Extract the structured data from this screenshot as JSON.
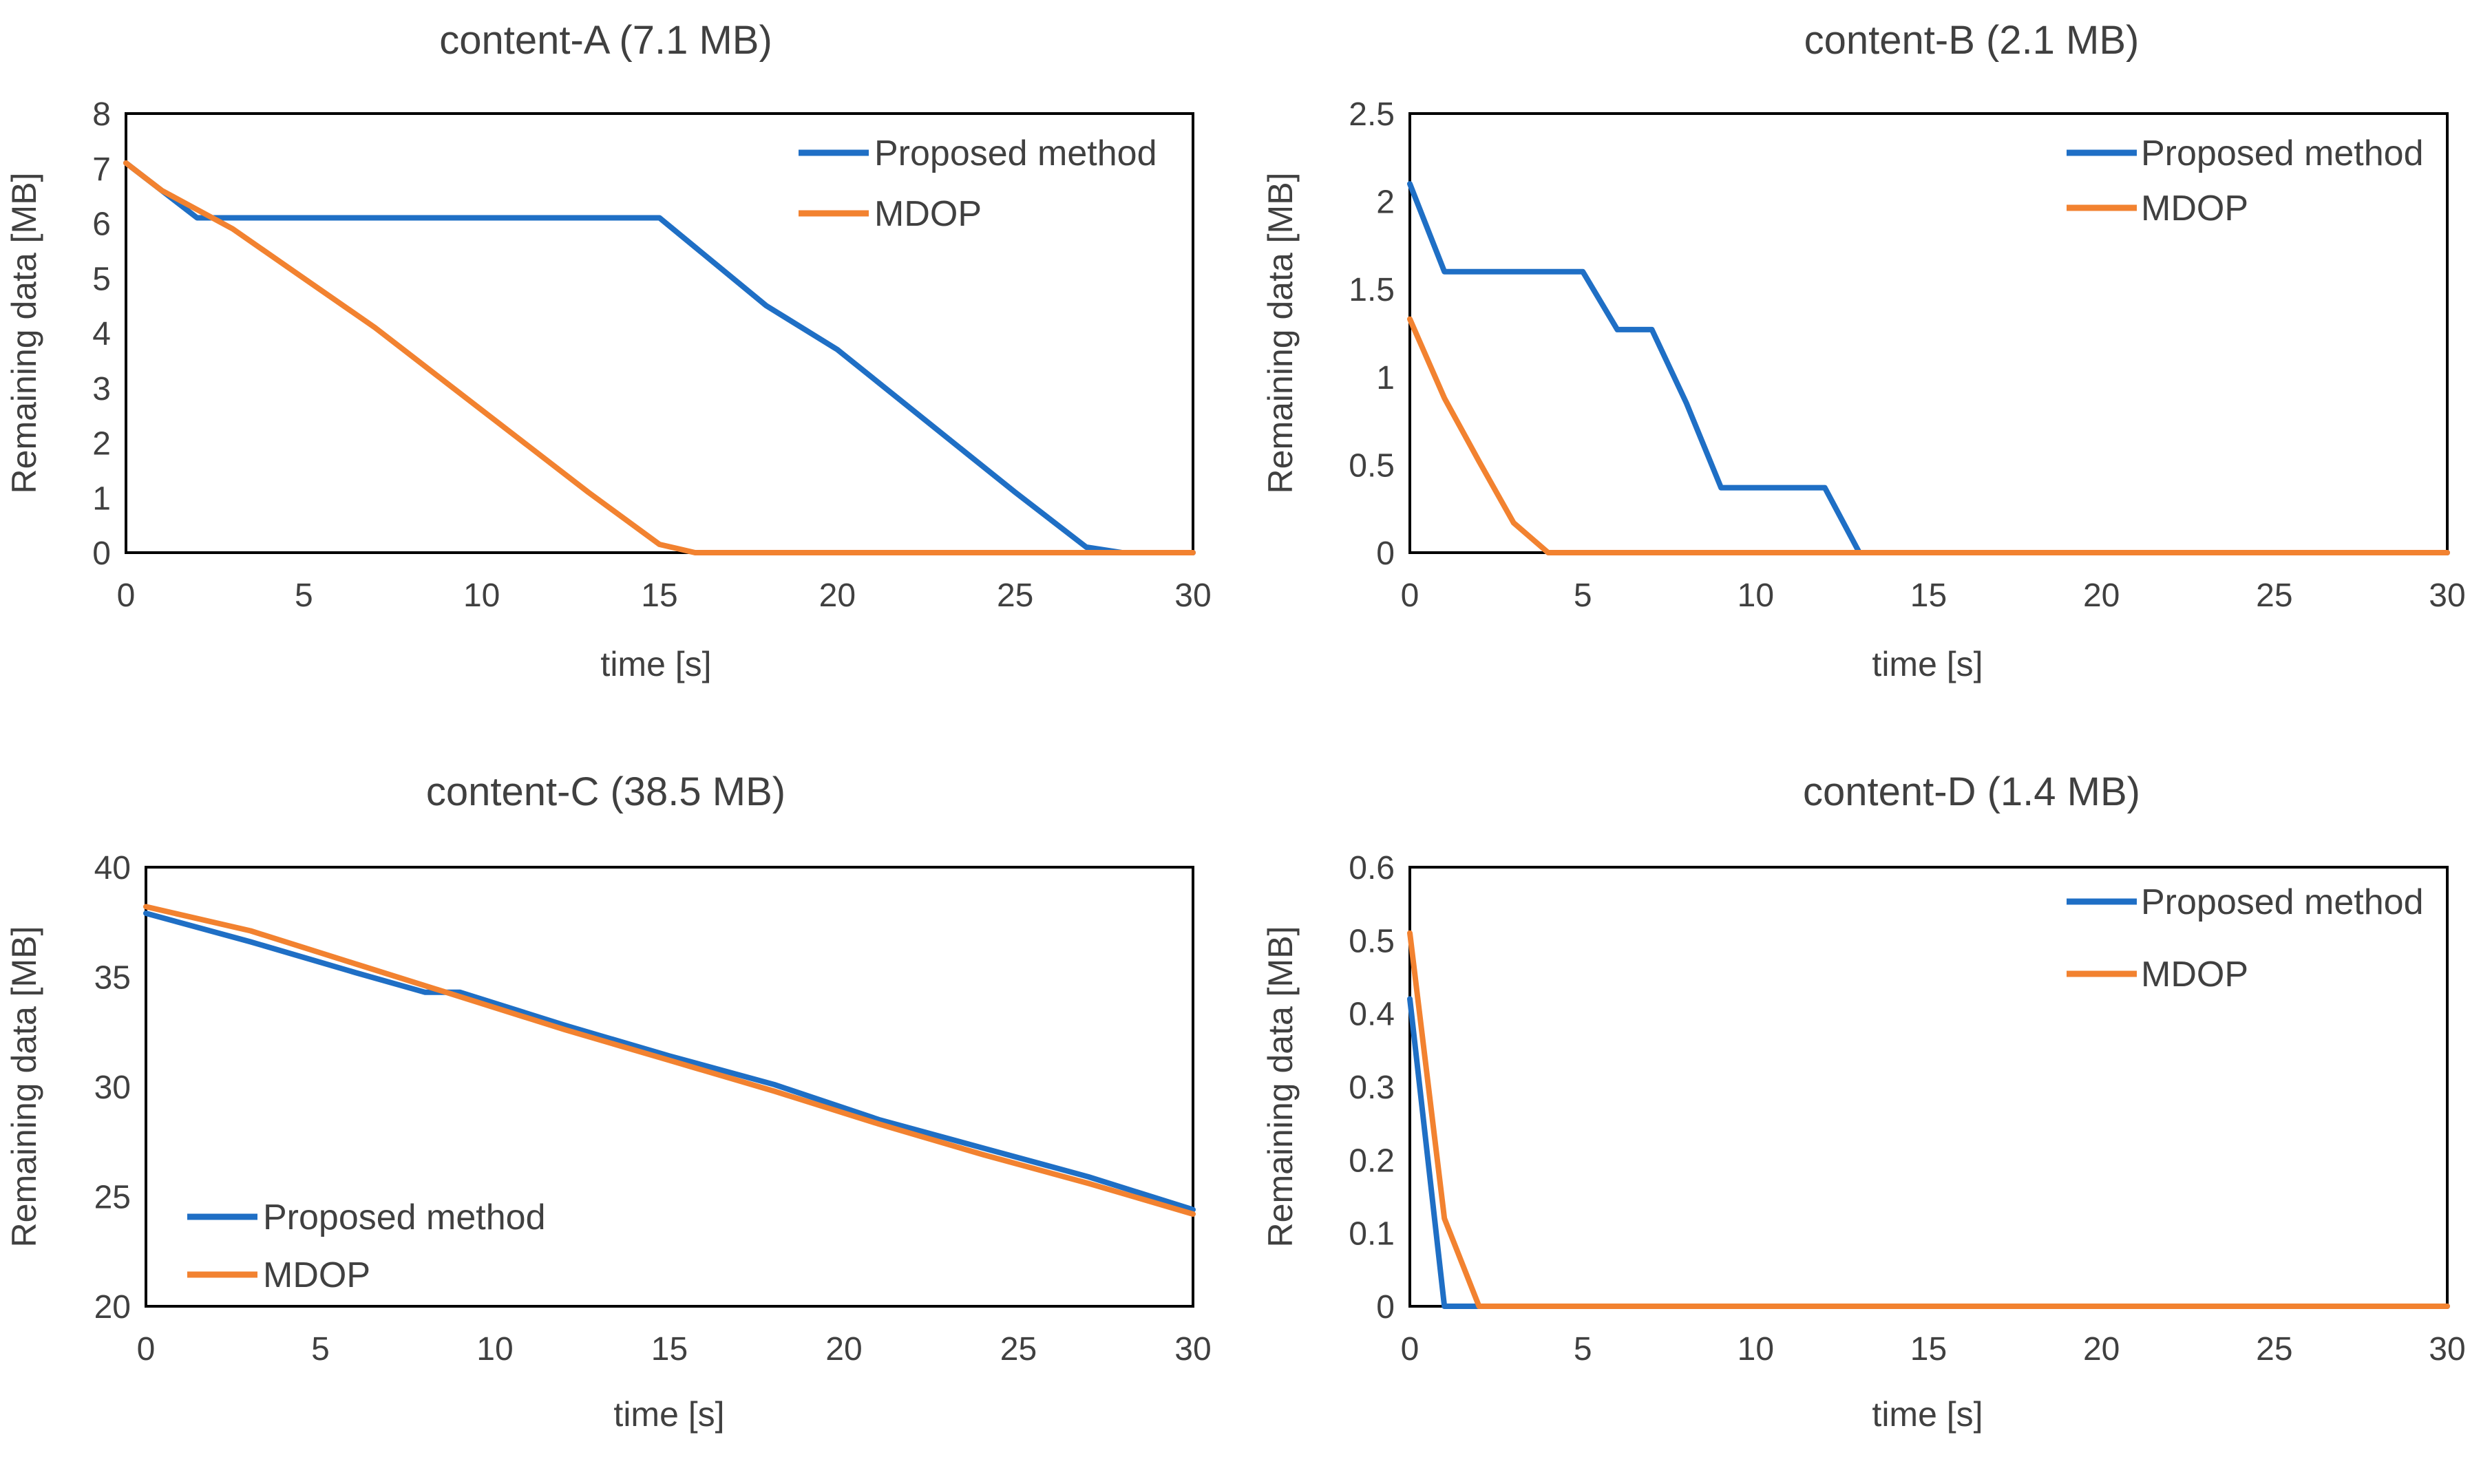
{
  "colors": {
    "proposed": "#1f6fc5",
    "mdop": "#f28230",
    "frame": "#000000",
    "text": "#404040"
  },
  "chart_data": [
    {
      "type": "line",
      "title": "content-A (7.1 MB)",
      "xlabel": "time [s]",
      "ylabel": "Remaining data [MB]",
      "xlim": [
        0,
        30
      ],
      "ylim": [
        0,
        8
      ],
      "xticks": [
        "0",
        "5",
        "10",
        "15",
        "20",
        "25",
        "30"
      ],
      "yticks": [
        "0",
        "1",
        "2",
        "3",
        "4",
        "5",
        "6",
        "7",
        "8"
      ],
      "legend": "top-right",
      "grid": false,
      "series": [
        {
          "name": "Proposed method",
          "color": "#1f6fc5",
          "x": [
            0,
            2,
            15,
            18,
            20,
            25,
            27,
            28,
            30
          ],
          "y": [
            7.1,
            6.1,
            6.1,
            4.5,
            3.7,
            1.1,
            0.1,
            0,
            0
          ]
        },
        {
          "name": "MDOP",
          "color": "#f28230",
          "x": [
            0,
            1,
            3,
            5,
            7,
            9,
            11,
            13,
            15,
            16,
            30
          ],
          "y": [
            7.1,
            6.6,
            5.9,
            5.0,
            4.1,
            3.1,
            2.1,
            1.1,
            0.15,
            0,
            0
          ]
        }
      ]
    },
    {
      "type": "line",
      "title": "content-B (2.1 MB)",
      "xlabel": "time [s]",
      "ylabel": "Remaining data [MB]",
      "xlim": [
        0,
        30
      ],
      "ylim": [
        0,
        2.5
      ],
      "xticks": [
        "0",
        "5",
        "10",
        "15",
        "20",
        "25",
        "30"
      ],
      "yticks": [
        "0",
        "0.5",
        "1",
        "1.5",
        "2",
        "2.5"
      ],
      "legend": "top-right",
      "grid": false,
      "series": [
        {
          "name": "Proposed method",
          "color": "#1f6fc5",
          "x": [
            0,
            1,
            5,
            6,
            7,
            8,
            9,
            12,
            13,
            30
          ],
          "y": [
            2.1,
            1.6,
            1.6,
            1.27,
            1.27,
            0.85,
            0.37,
            0.37,
            0,
            0
          ]
        },
        {
          "name": "MDOP",
          "color": "#f28230",
          "x": [
            0,
            1,
            2,
            3,
            4,
            30
          ],
          "y": [
            1.33,
            0.88,
            0.52,
            0.17,
            0,
            0
          ]
        }
      ]
    },
    {
      "type": "line",
      "title": "content-C (38.5 MB)",
      "xlabel": "time [s]",
      "ylabel": "Remaining data [MB]",
      "xlim": [
        0,
        30
      ],
      "ylim": [
        20,
        40
      ],
      "xticks": [
        "0",
        "5",
        "10",
        "15",
        "20",
        "25",
        "30"
      ],
      "yticks": [
        "20",
        "25",
        "30",
        "35",
        "40"
      ],
      "legend": "bottom-left",
      "grid": false,
      "series": [
        {
          "name": "Proposed method",
          "color": "#1f6fc5",
          "x": [
            0,
            3,
            6,
            8,
            9,
            12,
            15,
            18,
            21,
            24,
            27,
            30
          ],
          "y": [
            37.9,
            36.6,
            35.2,
            34.3,
            34.3,
            32.8,
            31.4,
            30.1,
            28.5,
            27.2,
            25.9,
            24.4
          ]
        },
        {
          "name": "MDOP",
          "color": "#f28230",
          "x": [
            0,
            3,
            6,
            9,
            12,
            15,
            18,
            21,
            24,
            27,
            30
          ],
          "y": [
            38.2,
            37.1,
            35.6,
            34.1,
            32.6,
            31.2,
            29.8,
            28.3,
            26.9,
            25.6,
            24.2
          ]
        }
      ]
    },
    {
      "type": "line",
      "title": "content-D (1.4 MB)",
      "xlabel": "time [s]",
      "ylabel": "Remaining data [MB]",
      "xlim": [
        0,
        30
      ],
      "ylim": [
        0,
        0.6
      ],
      "xticks": [
        "0",
        "5",
        "10",
        "15",
        "20",
        "25",
        "30"
      ],
      "yticks": [
        "0",
        "0.1",
        "0.2",
        "0.3",
        "0.4",
        "0.5",
        "0.6"
      ],
      "legend": "top-right",
      "grid": false,
      "series": [
        {
          "name": "Proposed method",
          "color": "#1f6fc5",
          "x": [
            0,
            1,
            30
          ],
          "y": [
            0.42,
            0,
            0
          ]
        },
        {
          "name": "MDOP",
          "color": "#f28230",
          "x": [
            0,
            1,
            2,
            30
          ],
          "y": [
            0.51,
            0.12,
            0,
            0
          ]
        }
      ]
    }
  ]
}
